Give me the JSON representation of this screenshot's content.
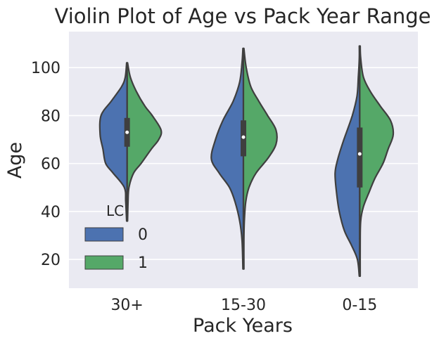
{
  "chart_data": {
    "type": "violin",
    "title": "Violin Plot of Age vs Pack Year Range",
    "xlabel": "Pack Years",
    "ylabel": "Age",
    "categories": [
      "30+",
      "15-30",
      "0-15"
    ],
    "ylim": [
      8,
      115
    ],
    "yticks": [
      20,
      40,
      60,
      80,
      100
    ],
    "grid": true,
    "split": true,
    "legend": {
      "title": "LC",
      "placement": "lower-left",
      "entries": [
        {
          "label": "0",
          "color": "#4c72b0"
        },
        {
          "label": "1",
          "color": "#55a868"
        }
      ]
    },
    "series": [
      {
        "name": "0",
        "color": "#4c72b0",
        "violins": [
          {
            "range": [
              36,
              102
            ],
            "profile": [
              [
                36,
                0.01
              ],
              [
                44,
                0.03
              ],
              [
                50,
                0.06
              ],
              [
                56,
                0.3
              ],
              [
                60,
                0.46
              ],
              [
                66,
                0.52
              ],
              [
                72,
                0.58
              ],
              [
                80,
                0.56
              ],
              [
                86,
                0.34
              ],
              [
                92,
                0.12
              ],
              [
                96,
                0.04
              ],
              [
                102,
                0.01
              ]
            ]
          },
          {
            "range": [
              16,
              108
            ],
            "profile": [
              [
                16,
                0.01
              ],
              [
                28,
                0.03
              ],
              [
                36,
                0.08
              ],
              [
                44,
                0.18
              ],
              [
                50,
                0.3
              ],
              [
                56,
                0.52
              ],
              [
                62,
                0.69
              ],
              [
                70,
                0.6
              ],
              [
                78,
                0.44
              ],
              [
                86,
                0.22
              ],
              [
                94,
                0.08
              ],
              [
                102,
                0.03
              ],
              [
                108,
                0.01
              ]
            ]
          },
          {
            "range": [
              13,
              109
            ],
            "profile": [
              [
                13,
                0.01
              ],
              [
                20,
                0.05
              ],
              [
                26,
                0.18
              ],
              [
                32,
                0.33
              ],
              [
                40,
                0.44
              ],
              [
                48,
                0.5
              ],
              [
                56,
                0.53
              ],
              [
                62,
                0.47
              ],
              [
                70,
                0.34
              ],
              [
                80,
                0.16
              ],
              [
                88,
                0.06
              ],
              [
                96,
                0.03
              ],
              [
                104,
                0.01
              ],
              [
                109,
                0.01
              ]
            ]
          }
        ]
      },
      {
        "name": "1",
        "color": "#55a868",
        "violins": [
          {
            "range": [
              36,
              102
            ],
            "profile": [
              [
                36,
                0.01
              ],
              [
                44,
                0.02
              ],
              [
                50,
                0.04
              ],
              [
                56,
                0.14
              ],
              [
                60,
                0.3
              ],
              [
                66,
                0.52
              ],
              [
                70,
                0.68
              ],
              [
                74,
                0.73
              ],
              [
                80,
                0.54
              ],
              [
                84,
                0.38
              ],
              [
                90,
                0.2
              ],
              [
                96,
                0.07
              ],
              [
                102,
                0.01
              ]
            ]
          },
          {
            "range": [
              16,
              108
            ],
            "profile": [
              [
                16,
                0.01
              ],
              [
                28,
                0.01
              ],
              [
                36,
                0.02
              ],
              [
                44,
                0.05
              ],
              [
                50,
                0.12
              ],
              [
                56,
                0.27
              ],
              [
                62,
                0.52
              ],
              [
                68,
                0.7
              ],
              [
                74,
                0.7
              ],
              [
                80,
                0.52
              ],
              [
                86,
                0.33
              ],
              [
                92,
                0.16
              ],
              [
                100,
                0.06
              ],
              [
                108,
                0.01
              ]
            ]
          },
          {
            "range": [
              13,
              109
            ],
            "profile": [
              [
                13,
                0.01
              ],
              [
                26,
                0.01
              ],
              [
                36,
                0.02
              ],
              [
                42,
                0.08
              ],
              [
                48,
                0.2
              ],
              [
                54,
                0.33
              ],
              [
                60,
                0.5
              ],
              [
                66,
                0.61
              ],
              [
                72,
                0.72
              ],
              [
                78,
                0.66
              ],
              [
                84,
                0.44
              ],
              [
                90,
                0.23
              ],
              [
                96,
                0.08
              ],
              [
                104,
                0.02
              ],
              [
                109,
                0.01
              ]
            ]
          }
        ]
      }
    ],
    "box": [
      {
        "q1": 67,
        "median": 73,
        "q3": 79,
        "whisker_low": 45,
        "whisker_high": 98
      },
      {
        "q1": 63,
        "median": 71,
        "q3": 78,
        "whisker_low": 40,
        "whisker_high": 100
      },
      {
        "q1": 50,
        "median": 64,
        "q3": 75,
        "whisker_low": 22,
        "whisker_high": 101
      }
    ]
  }
}
